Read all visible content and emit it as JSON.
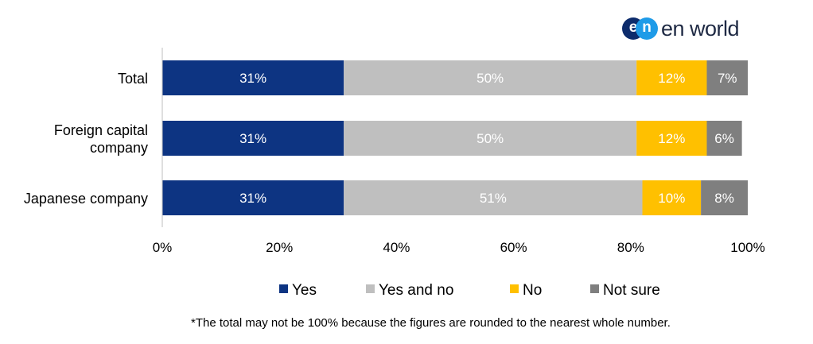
{
  "logo": {
    "badge_left": "e",
    "badge_right": "n",
    "text": "en world"
  },
  "footnote": "*The total may not be 100% because the figures are rounded to the nearest whole number.",
  "colors": {
    "yes": "#0d3482",
    "yes_and_no": "#bfbfbf",
    "no": "#ffc000",
    "not_sure": "#7f7f7f"
  },
  "chart_data": {
    "type": "bar",
    "orientation": "horizontal",
    "stacked": true,
    "percent_stacked": true,
    "categories": [
      [
        "Total"
      ],
      [
        "Foreign capital",
        "company"
      ],
      [
        "Japanese company"
      ]
    ],
    "series": [
      {
        "name": "Yes",
        "values": [
          31,
          31,
          31
        ],
        "labels": [
          "31%",
          "31%",
          "31%"
        ],
        "label_color": "#ffffff"
      },
      {
        "name": "Yes and no",
        "values": [
          50,
          50,
          51
        ],
        "labels": [
          "50%",
          "50%",
          "51%"
        ],
        "label_color": "#ffffff"
      },
      {
        "name": "No",
        "values": [
          12,
          12,
          10
        ],
        "labels": [
          "12%",
          "12%",
          "10%"
        ],
        "label_color": "#ffffff"
      },
      {
        "name": "Not sure",
        "values": [
          7,
          6,
          8
        ],
        "labels": [
          "7%",
          "6%",
          "8%"
        ],
        "label_color": "#ffffff"
      }
    ],
    "xlim": [
      0,
      100
    ],
    "xticks": [
      "0%",
      "20%",
      "40%",
      "60%",
      "80%",
      "100%"
    ],
    "grid": false,
    "legend": "bottom"
  }
}
